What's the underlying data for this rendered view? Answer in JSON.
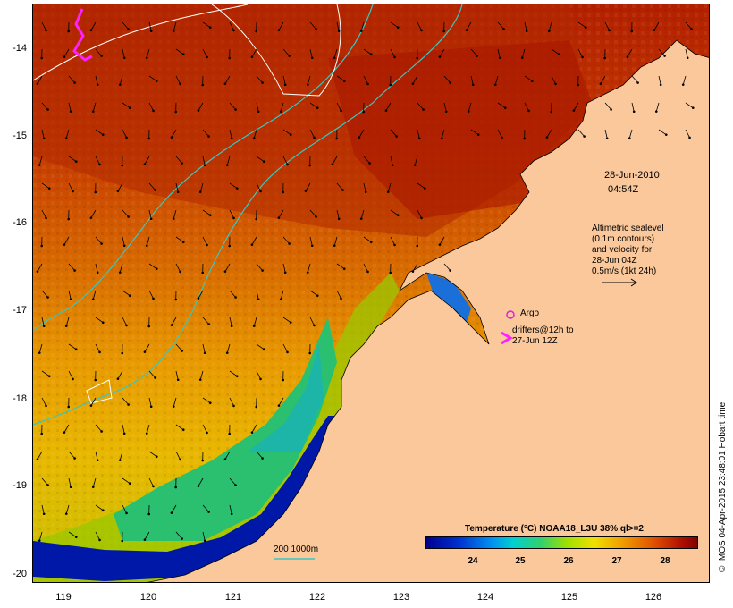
{
  "map": {
    "lat_ticks": [
      "-14",
      "-15",
      "-16",
      "-17",
      "-18",
      "-19",
      "-20"
    ],
    "lon_ticks": [
      "119",
      "120",
      "121",
      "122",
      "123",
      "124",
      "125",
      "126"
    ],
    "credit": "© IMOS 04-Apr-2015 23:48:01 Hobart time",
    "date_line1": "28-Jun-2010",
    "date_line2": "04:54Z",
    "altimetry_note": "Altimetric sealevel\n(0.1m contours)\nand velocity for\n28-Jun 04Z\n0.5m/s (1kt 24h)",
    "argo_label": "Argo",
    "drifters_label": "drifters@12h to\n27-Jun 12Z",
    "scale_label": "200  1000m",
    "colorbar": {
      "title": "Temperature (°C) NOAA18_L3U 38% ql>=2",
      "ticks": [
        "24",
        "25",
        "26",
        "27",
        "28"
      ]
    },
    "colors": {
      "land": "#fac89b",
      "sst_warm": "#b32000",
      "sst_cool": "#0010a0",
      "bathymetry": "#3ac6c0",
      "argo": "#e020e0",
      "drifter": "#ff20ff"
    }
  }
}
